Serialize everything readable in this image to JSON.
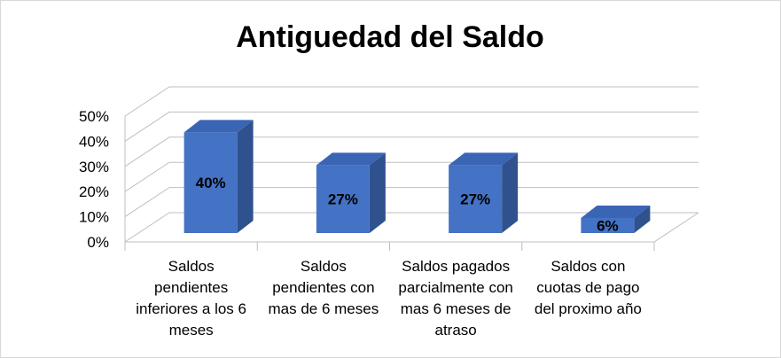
{
  "chart_data": {
    "type": "bar",
    "title": "Antiguedad del Saldo",
    "xlabel": "",
    "ylabel": "",
    "ylim": [
      0,
      50
    ],
    "yticks": [
      "0%",
      "10%",
      "20%",
      "30%",
      "40%",
      "50%"
    ],
    "grid": true,
    "legend": "none",
    "bar_color": "#4472c4",
    "categories": [
      [
        "Saldos",
        "pendientes",
        "inferiores a los 6",
        "meses"
      ],
      [
        "Saldos",
        "pendientes con",
        "mas de 6 meses"
      ],
      [
        "Saldos pagados",
        "parcialmente con",
        "mas 6 meses de",
        "atraso"
      ],
      [
        "Saldos con",
        "cuotas de pago",
        "del proximo año"
      ]
    ],
    "values": [
      40,
      27,
      27,
      6
    ],
    "data_labels": [
      "40%",
      "27%",
      "27%",
      "6%"
    ]
  }
}
